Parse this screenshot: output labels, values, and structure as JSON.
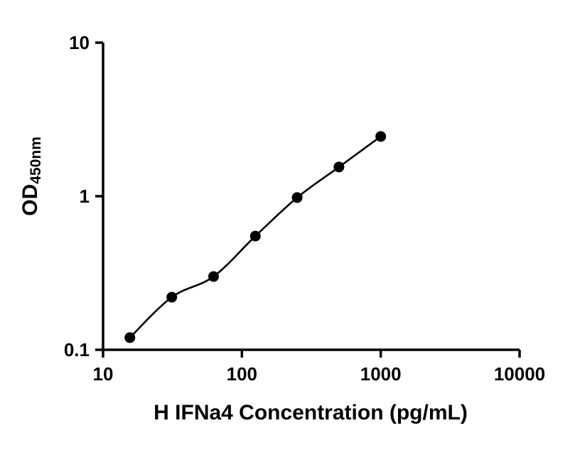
{
  "chart_data": {
    "type": "scatter",
    "title": "",
    "xlabel": "H IFNa4 Concentration (pg/mL)",
    "ylabel_main": "OD",
    "ylabel_sub": "450nm",
    "xscale": "log",
    "yscale": "log",
    "xlim": [
      10,
      10000
    ],
    "ylim": [
      0.1,
      10
    ],
    "x_ticks": [
      "10",
      "100",
      "1000",
      "10000"
    ],
    "y_ticks": [
      "0.1",
      "1",
      "10"
    ],
    "grid": false,
    "legend": false,
    "marker": "filled-circle",
    "marker_color": "#000000",
    "line_color": "#000000",
    "background_color": "#ffffff",
    "points": [
      {
        "x": 15.6,
        "y": 0.12
      },
      {
        "x": 31.25,
        "y": 0.22
      },
      {
        "x": 62.5,
        "y": 0.3
      },
      {
        "x": 125,
        "y": 0.55
      },
      {
        "x": 250,
        "y": 0.98
      },
      {
        "x": 500,
        "y": 1.55
      },
      {
        "x": 1000,
        "y": 2.45
      }
    ]
  }
}
